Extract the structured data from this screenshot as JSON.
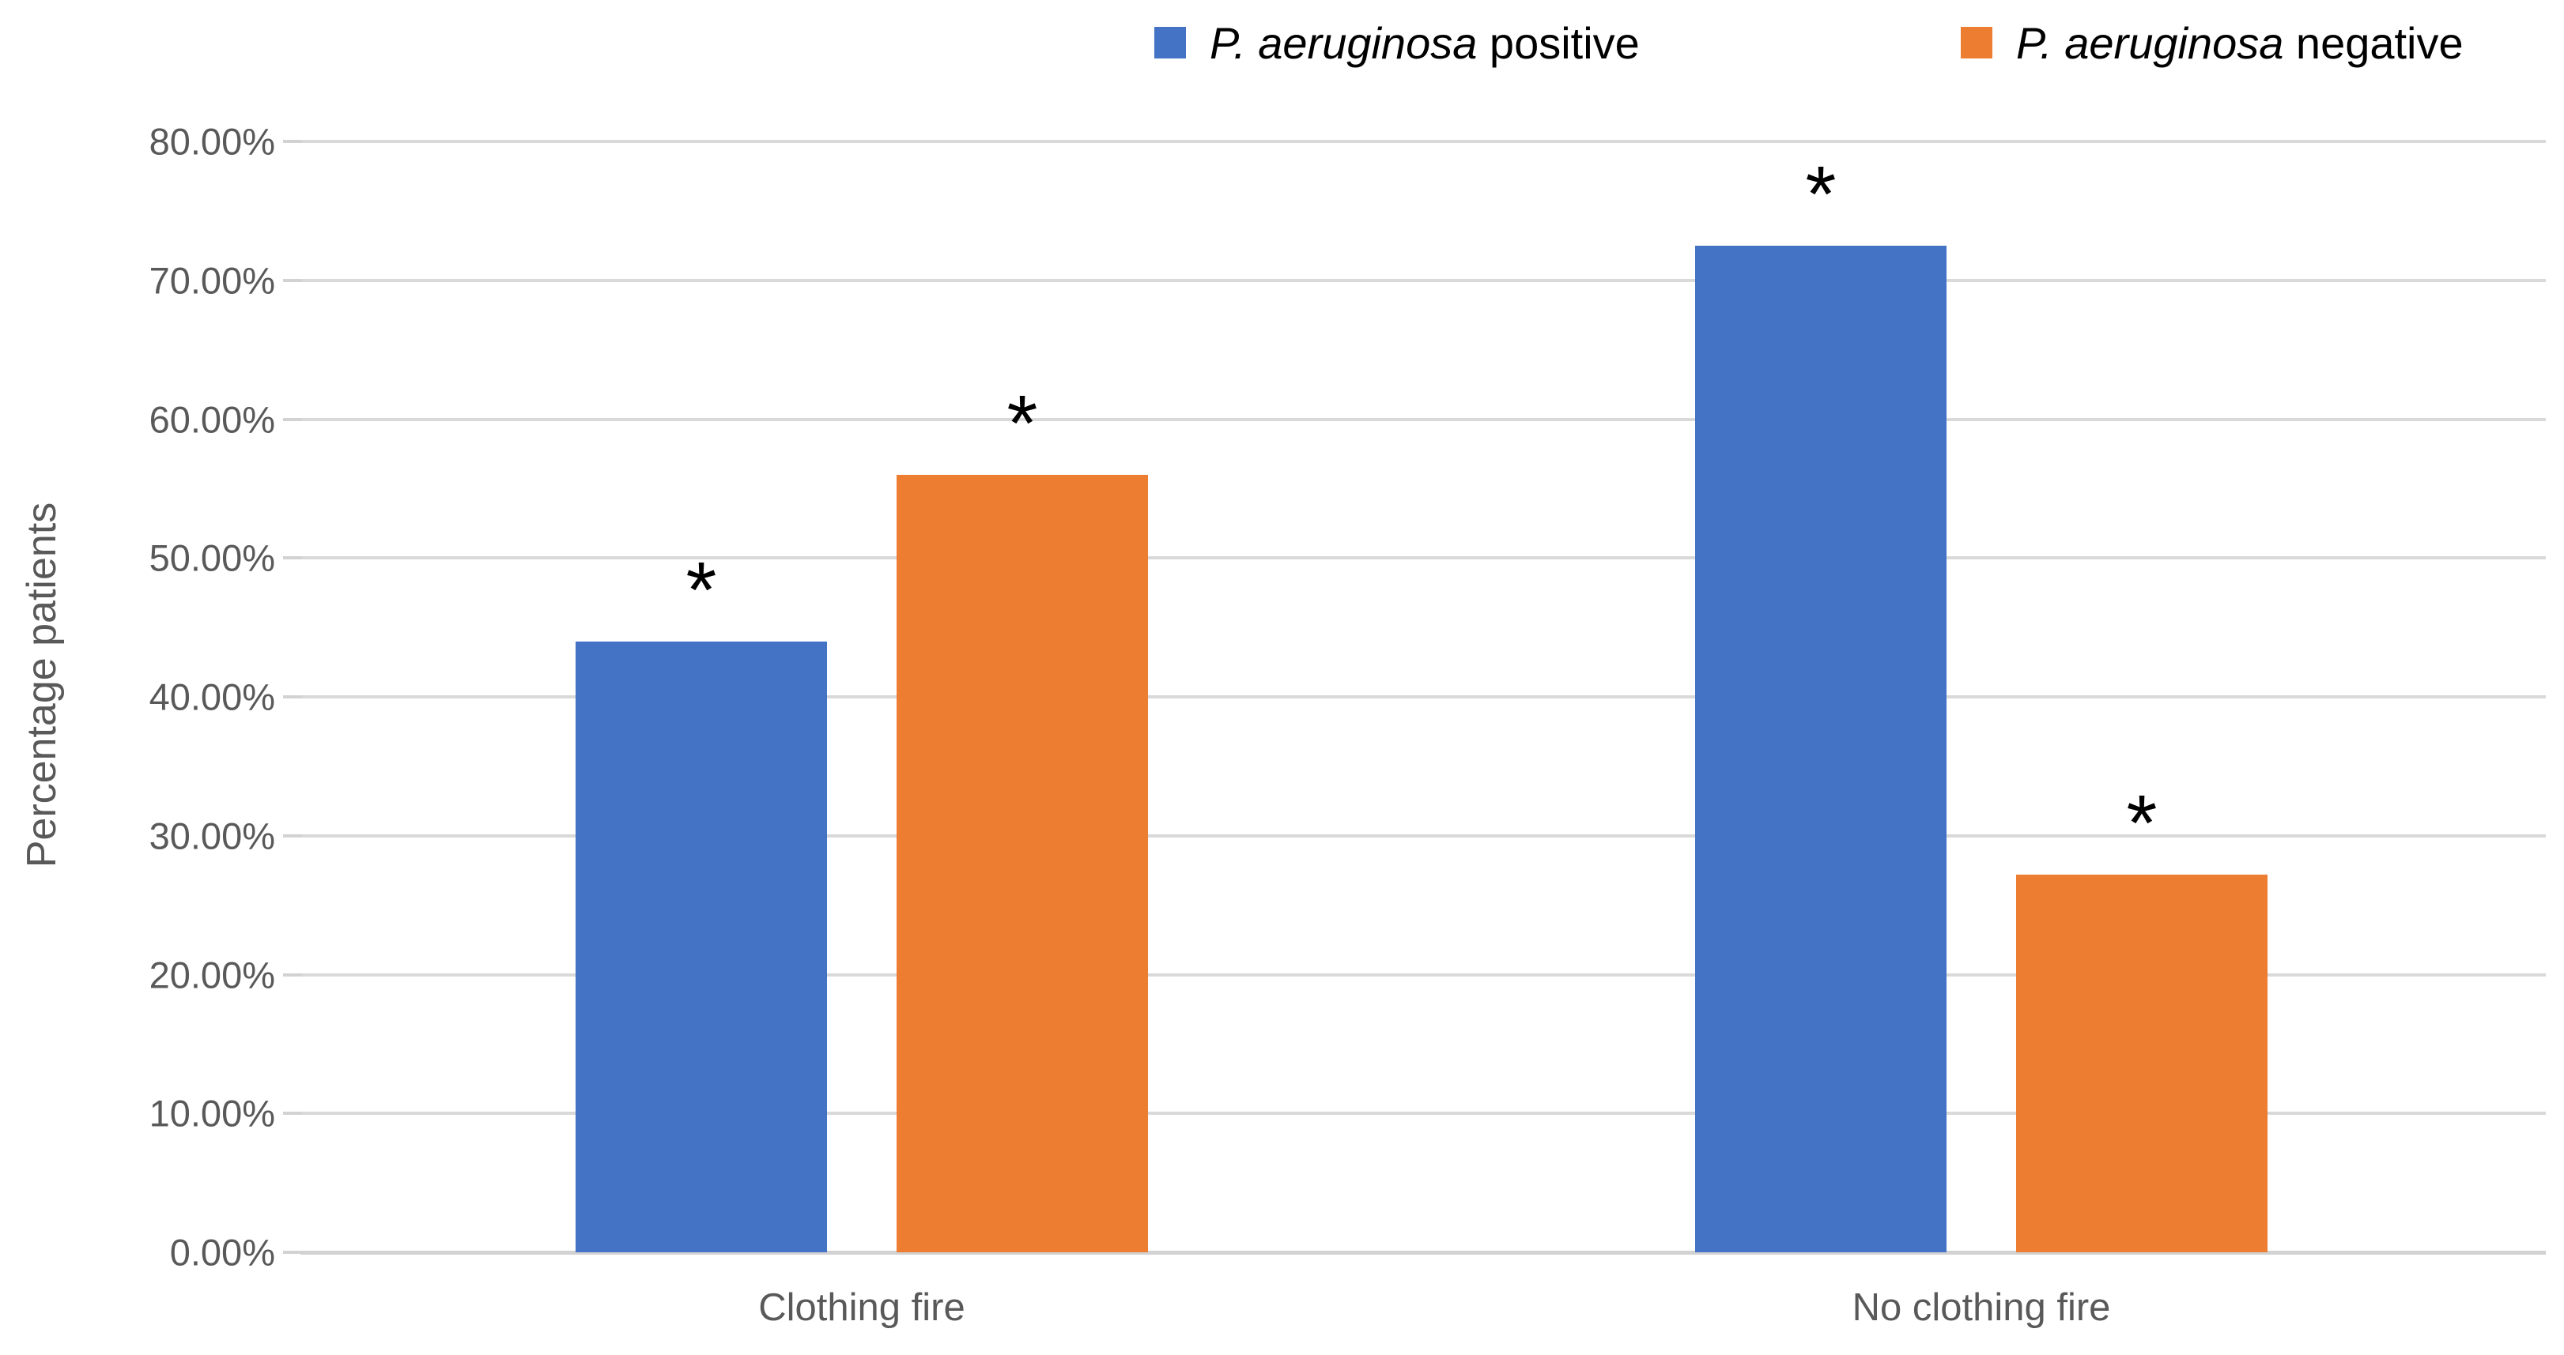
{
  "chart_data": {
    "type": "bar",
    "title": "",
    "ylabel": "Percentage patients",
    "xlabel": "",
    "categories": [
      "Clothing fire",
      "No clothing fire"
    ],
    "series": [
      {
        "name": "P. aeruginosa positive",
        "name_italic": "P. aeruginosa",
        "name_regular": " positive",
        "color": "#4472C4",
        "values": [
          44.0,
          72.5
        ]
      },
      {
        "name": "P. aeruginosa negative",
        "name_italic": "P. aeruginosa",
        "name_regular": " negative",
        "color": "#ED7D31",
        "values": [
          56.0,
          27.2
        ]
      }
    ],
    "annotations": {
      "symbol": "*",
      "per_bar": [
        [
          "*",
          "*"
        ],
        [
          "*",
          "*"
        ]
      ]
    },
    "y_axis": {
      "min": 0,
      "max": 80,
      "tick_step": 10,
      "tick_labels": [
        "0.00%",
        "10.00%",
        "20.00%",
        "30.00%",
        "40.00%",
        "50.00%",
        "60.00%",
        "70.00%",
        "80.00%"
      ]
    },
    "grid": true,
    "legend_position": "top-right",
    "colors": {
      "gridline": "#D9D9D9",
      "axis_line": "#D2D2D2",
      "tick_text": "#595959",
      "category_text": "#595959",
      "axis_title_text": "#595959",
      "annotation_text": "#000000",
      "background": "#FFFFFF"
    }
  }
}
